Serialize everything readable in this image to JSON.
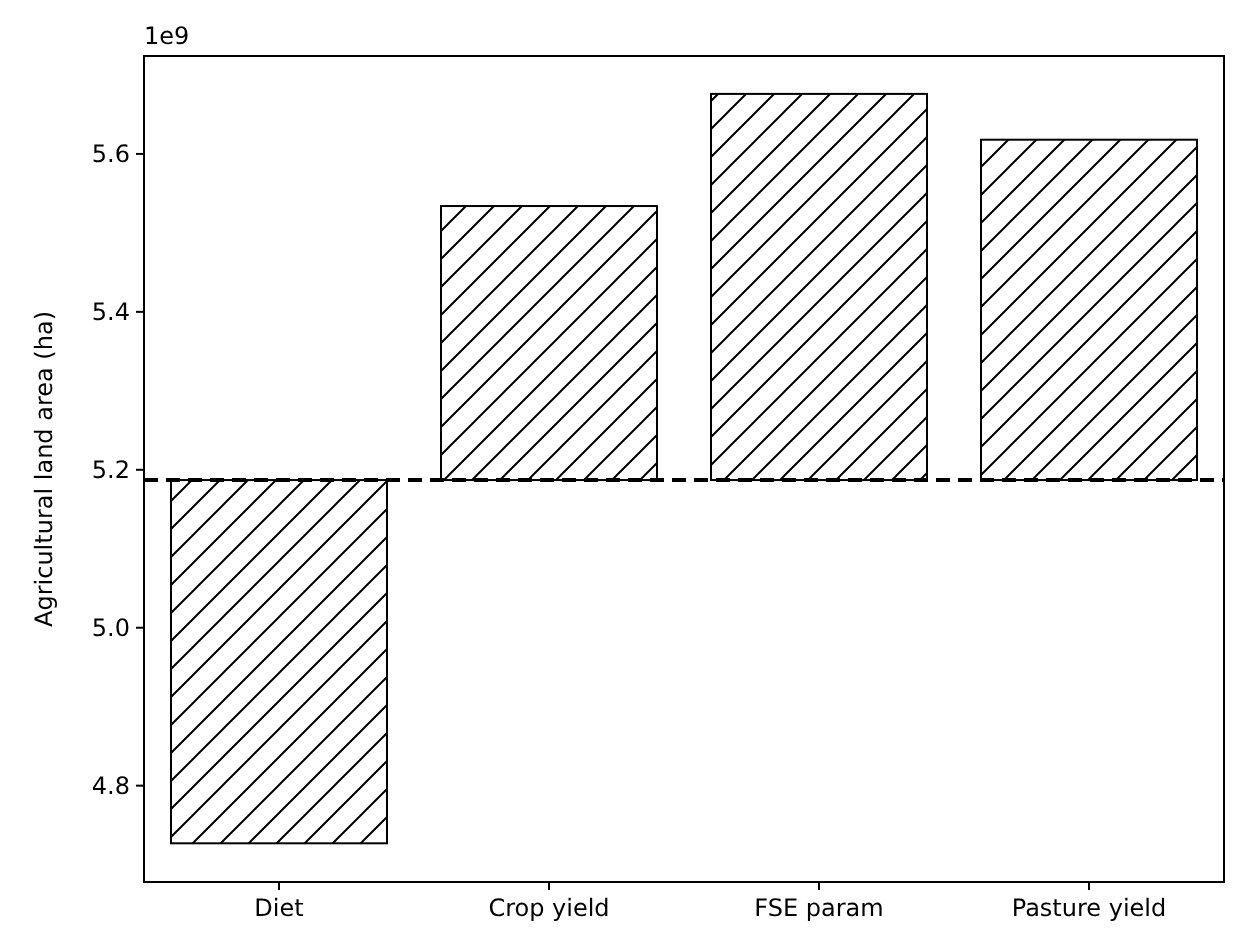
{
  "chart_data": {
    "type": "bar",
    "ylabel": "Agricultural land area (ha)",
    "annotations": [
      "1e9"
    ],
    "categories": [
      "Diet",
      "Crop yield",
      "FSE param",
      "Pasture yield"
    ],
    "values": [
      -0.46,
      0.347,
      0.489,
      0.431
    ],
    "base": [
      5.187,
      5.187,
      5.187,
      5.187
    ],
    "color": "#ffffff",
    "ylim": [
      4.678,
      5.724
    ],
    "yticks": [
      4.8,
      {
        "value": 5,
        "label": "5.0"
      },
      5.2,
      5.4,
      5.6
    ],
    "ref_lines": [
      {
        "axis": "y",
        "value": 5.187,
        "color": "#000000",
        "line_style": "dashed"
      }
    ],
    "grid": false
  }
}
